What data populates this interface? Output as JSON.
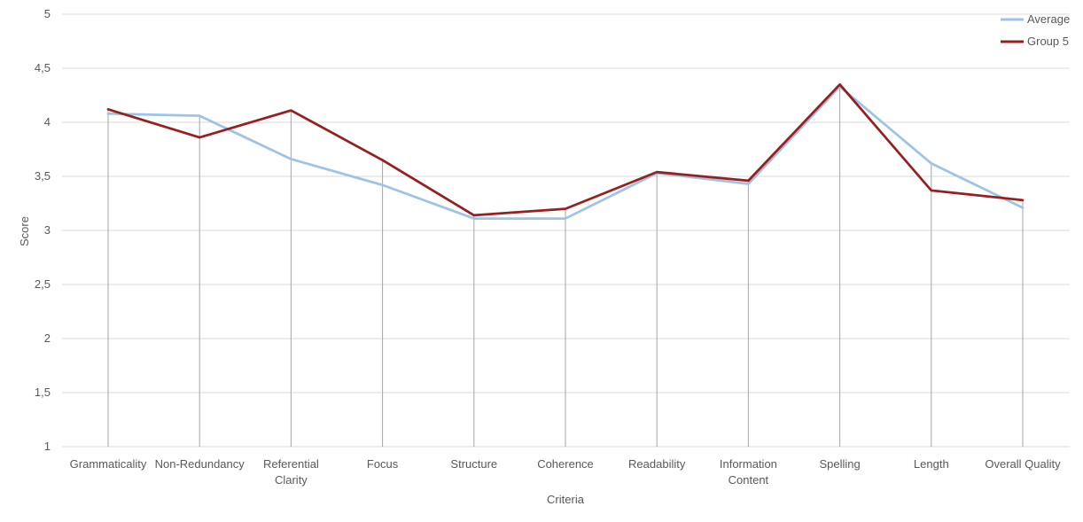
{
  "chart_data": {
    "type": "line",
    "xlabel": "Criteria",
    "ylabel": "Score",
    "ylim": [
      1,
      5
    ],
    "ytick_step": 0.5,
    "ytick_labels": [
      "1",
      "1,5",
      "2",
      "2,5",
      "3",
      "3,5",
      "4",
      "4,5",
      "5"
    ],
    "grid": true,
    "legend_position": "top-right",
    "categories": [
      [
        "Grammaticality"
      ],
      [
        "Non-Redundancy"
      ],
      [
        "Referential",
        "Clarity"
      ],
      [
        "Focus"
      ],
      [
        "Structure"
      ],
      [
        "Coherence"
      ],
      [
        "Readability"
      ],
      [
        "Information",
        "Content"
      ],
      [
        "Spelling"
      ],
      [
        "Length"
      ],
      [
        "Overall Quality"
      ]
    ],
    "series": [
      {
        "name": "Average",
        "color": "#9dc3e6",
        "values": [
          4.08,
          4.06,
          3.66,
          3.42,
          3.11,
          3.11,
          3.53,
          3.43,
          4.33,
          3.62,
          3.21
        ]
      },
      {
        "name": "Group 5",
        "color": "#962020",
        "values": [
          4.12,
          3.86,
          4.11,
          3.65,
          3.14,
          3.2,
          3.54,
          3.46,
          4.35,
          3.37,
          3.28
        ]
      }
    ]
  }
}
